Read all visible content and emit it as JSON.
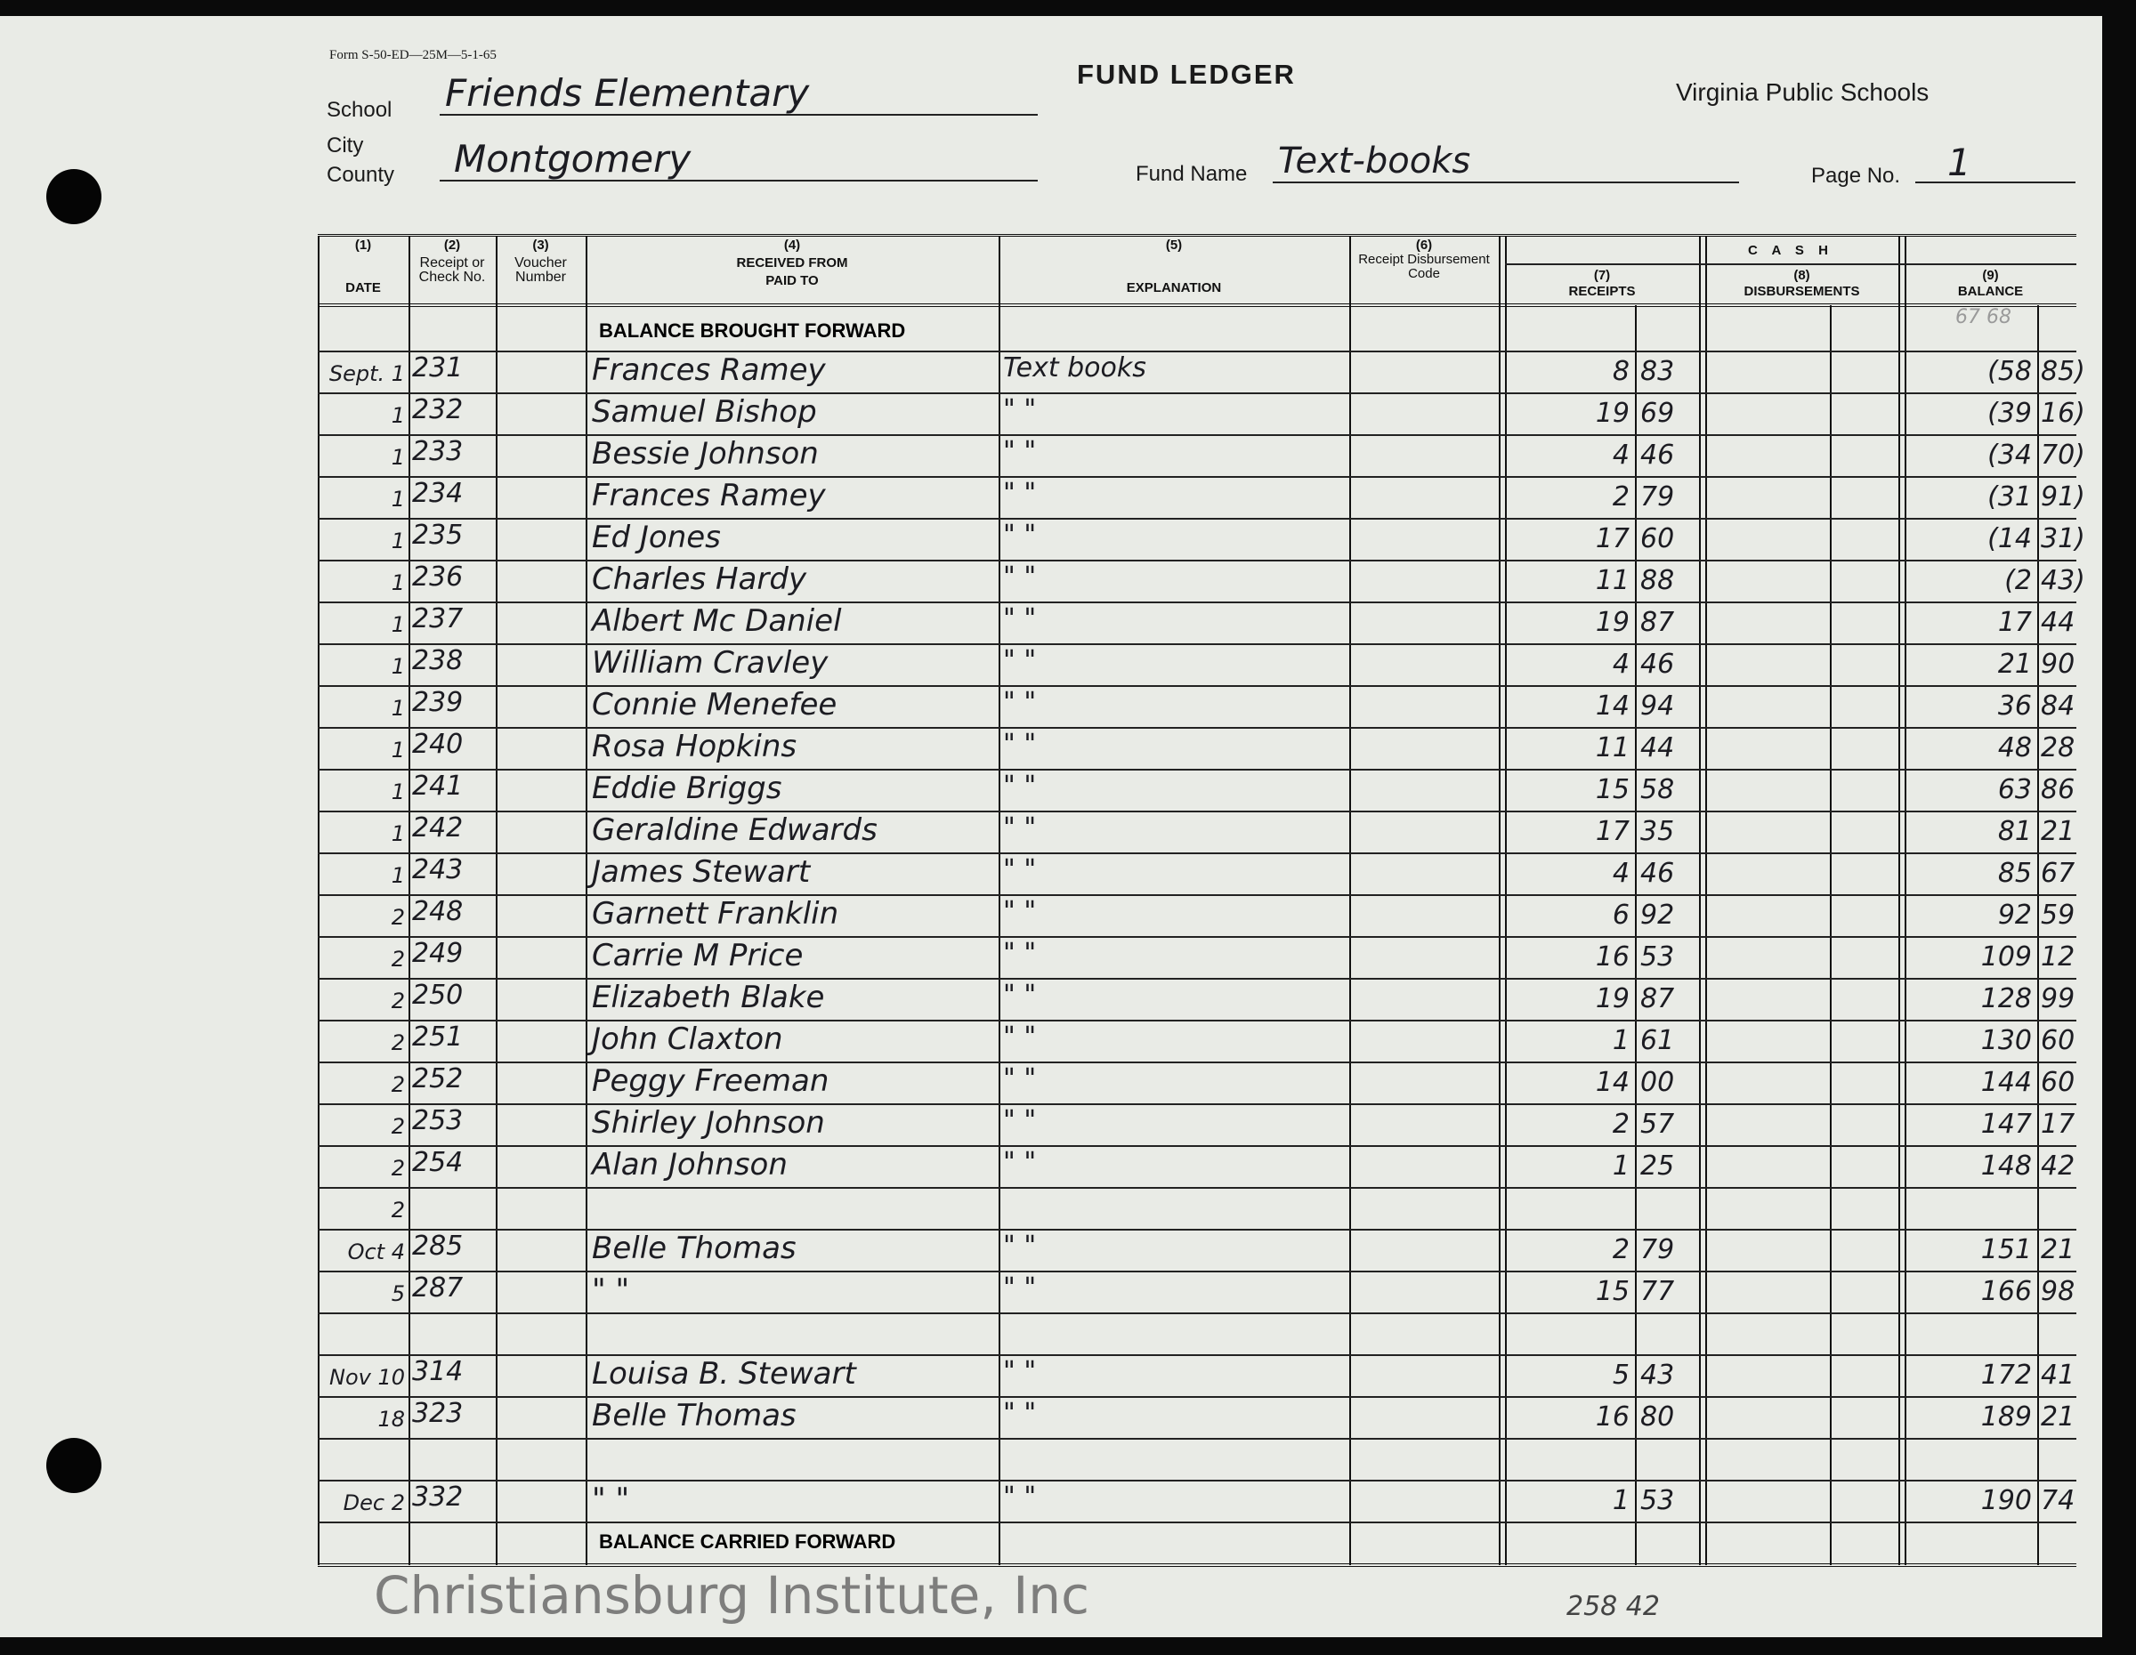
{
  "form_number": "Form S-50-ED—25M—5-1-65",
  "title": "FUND LEDGER",
  "issuer": "Virginia Public Schools",
  "labels": {
    "school": "School",
    "city": "City",
    "county": "County",
    "fund_name": "Fund Name",
    "page_no": "Page No."
  },
  "values": {
    "school": "Friends Elementary",
    "county": "Montgomery",
    "fund_name": "Text-books",
    "page_no": "1"
  },
  "columns": {
    "n1": "(1)",
    "date": "DATE",
    "n2": "(2)",
    "check": "Receipt or Check No.",
    "n3": "(3)",
    "voucher": "Voucher Number",
    "n4": "(4)",
    "received": "RECEIVED FROM",
    "paid": "PAID TO",
    "n5": "(5)",
    "explanation": "EXPLANATION",
    "n6": "(6)",
    "code": "Receipt Disbursement Code",
    "cash": "C A S H",
    "n7": "(7)",
    "receipts": "RECEIPTS",
    "n8": "(8)",
    "disbursements": "DISBURSEMENTS",
    "n9": "(9)",
    "balance": "BALANCE"
  },
  "balance_forward_label": "BALANCE BROUGHT FORWARD",
  "balance_forward_faint": "67  68",
  "balance_carried_label": "BALANCE CARRIED FORWARD",
  "rows": [
    {
      "date": "Sept. 1",
      "check": "231",
      "name": "Frances Ramey",
      "expl": "Text books",
      "rd": "8",
      "rc": "83",
      "bd": "(58",
      "bc": "85)"
    },
    {
      "date": "1",
      "check": "232",
      "name": "Samuel Bishop",
      "expl": "\"    \"",
      "rd": "19",
      "rc": "69",
      "bd": "(39",
      "bc": "16)"
    },
    {
      "date": "1",
      "check": "233",
      "name": "Bessie Johnson",
      "expl": "\"    \"",
      "rd": "4",
      "rc": "46",
      "bd": "(34",
      "bc": "70)"
    },
    {
      "date": "1",
      "check": "234",
      "name": "Frances Ramey",
      "expl": "\"    \"",
      "rd": "2",
      "rc": "79",
      "bd": "(31",
      "bc": "91)"
    },
    {
      "date": "1",
      "check": "235",
      "name": "Ed Jones",
      "expl": "\"    \"",
      "rd": "17",
      "rc": "60",
      "bd": "(14",
      "bc": "31)"
    },
    {
      "date": "1",
      "check": "236",
      "name": "Charles Hardy",
      "expl": "\"    \"",
      "rd": "11",
      "rc": "88",
      "bd": "(2",
      "bc": "43)"
    },
    {
      "date": "1",
      "check": "237",
      "name": "Albert Mc Daniel",
      "expl": "\"    \"",
      "rd": "19",
      "rc": "87",
      "bd": "17",
      "bc": "44"
    },
    {
      "date": "1",
      "check": "238",
      "name": "William Cravley",
      "expl": "\"    \"",
      "rd": "4",
      "rc": "46",
      "bd": "21",
      "bc": "90"
    },
    {
      "date": "1",
      "check": "239",
      "name": "Connie Menefee",
      "expl": "\"    \"",
      "rd": "14",
      "rc": "94",
      "bd": "36",
      "bc": "84"
    },
    {
      "date": "1",
      "check": "240",
      "name": "Rosa Hopkins",
      "expl": "\"    \"",
      "rd": "11",
      "rc": "44",
      "bd": "48",
      "bc": "28"
    },
    {
      "date": "1",
      "check": "241",
      "name": "Eddie Briggs",
      "expl": "\"    \"",
      "rd": "15",
      "rc": "58",
      "bd": "63",
      "bc": "86"
    },
    {
      "date": "1",
      "check": "242",
      "name": "Geraldine Edwards",
      "expl": "\"    \"",
      "rd": "17",
      "rc": "35",
      "bd": "81",
      "bc": "21"
    },
    {
      "date": "1",
      "check": "243",
      "name": "James Stewart",
      "expl": "\"    \"",
      "rd": "4",
      "rc": "46",
      "bd": "85",
      "bc": "67"
    },
    {
      "date": "2",
      "check": "248",
      "name": "Garnett Franklin",
      "expl": "\"    \"",
      "rd": "6",
      "rc": "92",
      "bd": "92",
      "bc": "59"
    },
    {
      "date": "2",
      "check": "249",
      "name": "Carrie M Price",
      "expl": "\"    \"",
      "rd": "16",
      "rc": "53",
      "bd": "109",
      "bc": "12"
    },
    {
      "date": "2",
      "check": "250",
      "name": "Elizabeth Blake",
      "expl": "\"    \"",
      "rd": "19",
      "rc": "87",
      "bd": "128",
      "bc": "99"
    },
    {
      "date": "2",
      "check": "251",
      "name": "John Claxton",
      "expl": "\"    \"",
      "rd": "1",
      "rc": "61",
      "bd": "130",
      "bc": "60"
    },
    {
      "date": "2",
      "check": "252",
      "name": "Peggy Freeman",
      "expl": "\"    \"",
      "rd": "14",
      "rc": "00",
      "bd": "144",
      "bc": "60"
    },
    {
      "date": "2",
      "check": "253",
      "name": "Shirley Johnson",
      "expl": "\"    \"",
      "rd": "2",
      "rc": "57",
      "bd": "147",
      "bc": "17"
    },
    {
      "date": "2",
      "check": "254",
      "name": "Alan Johnson",
      "expl": "\"    \"",
      "rd": "1",
      "rc": "25",
      "bd": "148",
      "bc": "42"
    },
    {
      "date": "2",
      "check": "",
      "name": "",
      "expl": "",
      "rd": "",
      "rc": "",
      "bd": "",
      "bc": ""
    },
    {
      "date": "Oct 4",
      "check": "285",
      "name": "Belle Thomas",
      "expl": "\"    \"",
      "rd": "2",
      "rc": "79",
      "bd": "151",
      "bc": "21"
    },
    {
      "date": "5",
      "check": "287",
      "name": "\"    \"",
      "expl": "\"    \"",
      "rd": "15",
      "rc": "77",
      "bd": "166",
      "bc": "98"
    },
    {
      "date": "",
      "check": "",
      "name": "",
      "expl": "",
      "rd": "",
      "rc": "",
      "bd": "",
      "bc": ""
    },
    {
      "date": "Nov 10",
      "check": "314",
      "name": "Louisa B. Stewart",
      "expl": "\"    \"",
      "rd": "5",
      "rc": "43",
      "bd": "172",
      "bc": "41"
    },
    {
      "date": "18",
      "check": "323",
      "name": "Belle Thomas",
      "expl": "\"    \"",
      "rd": "16",
      "rc": "80",
      "bd": "189",
      "bc": "21"
    },
    {
      "date": "",
      "check": "",
      "name": "",
      "expl": "",
      "rd": "",
      "rc": "",
      "bd": "",
      "bc": ""
    },
    {
      "date": "Dec 2",
      "check": "332",
      "name": "\"    \"",
      "expl": "\"    \"",
      "rd": "1",
      "rc": "53",
      "bd": "190",
      "bc": "74"
    }
  ],
  "footer_total": "258 42",
  "watermark": "Christiansburg Institute, Inc"
}
